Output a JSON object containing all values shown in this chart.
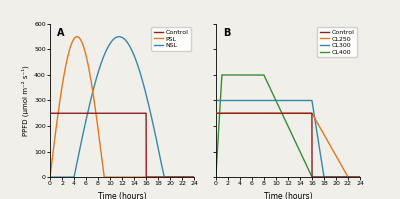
{
  "panel_A": {
    "label": "A",
    "control": {
      "y": 250,
      "x_start": 0,
      "x_end": 16
    },
    "PSL": {
      "peak": 550,
      "t_start": 0,
      "t_end": 9.0
    },
    "NSL": {
      "peak": 550,
      "t_start": 4.0,
      "t_end": 19.0
    },
    "colors": {
      "Control": "#8B2020",
      "PSL": "#E07820",
      "NSL": "#3A86A8"
    },
    "legend_labels": [
      "Control",
      "PSL",
      "NSL"
    ]
  },
  "panel_B": {
    "label": "B",
    "control": {
      "y": 250,
      "x_start": 0,
      "x_end": 16
    },
    "CL250": {
      "y": 250,
      "x_start": 0,
      "x_end": 16,
      "ramp_end": 22
    },
    "CL300": {
      "y": 300,
      "x_start": 0,
      "x_end": 16,
      "ramp_end": 18
    },
    "CL400": {
      "y": 400,
      "x_ramp_up_start": 0,
      "x_ramp_up_end": 1,
      "x_flat_end": 8,
      "x_ramp_down_end": 16
    },
    "colors": {
      "Control": "#8B2020",
      "CL250": "#E07820",
      "CL300": "#3A86A8",
      "CL400": "#3A8C3A"
    },
    "legend_labels": [
      "Control",
      "CL250",
      "CL300",
      "CL400"
    ]
  },
  "ylim": [
    0,
    600
  ],
  "xlim": [
    0,
    24
  ],
  "xticks": [
    0,
    2,
    4,
    6,
    8,
    10,
    12,
    14,
    16,
    18,
    20,
    22,
    24
  ],
  "yticks": [
    0,
    100,
    200,
    300,
    400,
    500,
    600
  ],
  "xlabel": "Time (hours)",
  "ylabel": "PPFD (μmol m⁻² s⁻¹)",
  "background_color": "#f0efea"
}
